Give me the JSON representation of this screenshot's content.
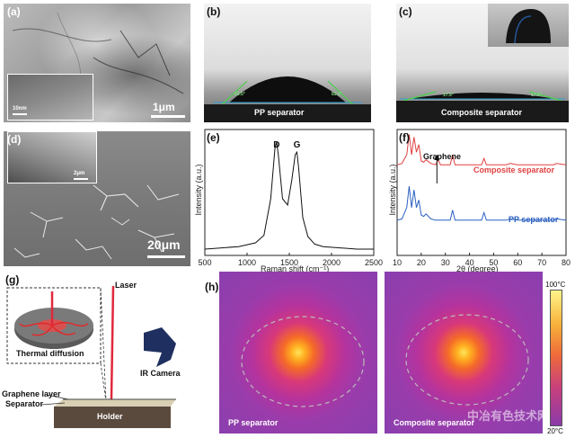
{
  "panels": {
    "a": {
      "label": "(a)",
      "scale_bar": "1μm",
      "inset_scale": "10nm"
    },
    "b": {
      "label": "(b)",
      "caption": "PP separator",
      "angle_left": "63.5°",
      "angle_right": "63.5°"
    },
    "c": {
      "label": "(c)",
      "caption": "Composite separator",
      "angle_left": "17.5°",
      "angle_right": "17.5°"
    },
    "d": {
      "label": "(d)",
      "scale_bar": "20μm",
      "inset_scale": "2μm"
    },
    "e": {
      "label": "(e)"
    },
    "f": {
      "label": "(f)"
    },
    "g": {
      "label": "(g)",
      "laser": "Laser",
      "thermal": "Thermal diffusion",
      "camera": "IR Camera",
      "graphene_layer": "Graphene layer",
      "separator": "Separator",
      "holder": "Holder"
    },
    "h": {
      "label": "(h)",
      "left_caption": "PP separator",
      "right_caption": "Composite separator",
      "scale_max": "100°C",
      "scale_min": "20°C"
    }
  },
  "watermark": "中冶有色技术网",
  "colors": {
    "composite": "#e04040",
    "pp": "#2a5fc0",
    "laser": "#e0283c",
    "camera": "#1f3060"
  },
  "chart_data": [
    {
      "type": "line",
      "panel": "e",
      "xlabel": "Raman shift (cm⁻¹)",
      "ylabel": "Intensity (a.u.)",
      "xlim": [
        500,
        2500
      ],
      "xticks": [
        500,
        1000,
        1500,
        2000,
        2500
      ],
      "annotations": [
        {
          "text": "D",
          "x": 1350
        },
        {
          "text": "G",
          "x": 1590
        }
      ],
      "series": [
        {
          "x": [
            500,
            700,
            900,
            1100,
            1200,
            1280,
            1330,
            1350,
            1370,
            1420,
            1480,
            1530,
            1570,
            1590,
            1610,
            1660,
            1720,
            1800,
            1900,
            2100,
            2300,
            2500
          ],
          "y": [
            0.05,
            0.06,
            0.07,
            0.1,
            0.16,
            0.45,
            0.85,
            0.9,
            0.8,
            0.45,
            0.4,
            0.6,
            0.8,
            0.82,
            0.7,
            0.3,
            0.15,
            0.09,
            0.07,
            0.06,
            0.05,
            0.05
          ]
        }
      ]
    },
    {
      "type": "line",
      "panel": "f",
      "xlabel": "2θ (degree)",
      "ylabel": "Intensity (a.u.)",
      "xlim": [
        10,
        80
      ],
      "xticks": [
        10,
        20,
        30,
        40,
        50,
        60,
        70,
        80
      ],
      "annotations": [
        {
          "text": "Graphene",
          "x": 26.5
        }
      ],
      "series": [
        {
          "name": "Composite separator",
          "x": [
            10,
            12,
            14,
            15,
            16,
            17,
            18,
            19,
            20,
            21,
            22,
            24,
            26,
            27,
            28,
            30,
            32,
            33,
            34,
            40,
            45,
            46,
            47,
            55,
            57,
            60,
            70,
            75,
            76,
            80
          ],
          "y": [
            0.72,
            0.73,
            0.8,
            0.96,
            0.8,
            0.94,
            0.82,
            0.88,
            0.75,
            0.74,
            0.76,
            0.73,
            0.72,
            0.76,
            0.72,
            0.72,
            0.72,
            0.8,
            0.72,
            0.72,
            0.72,
            0.77,
            0.72,
            0.72,
            0.73,
            0.72,
            0.72,
            0.72,
            0.73,
            0.72
          ]
        },
        {
          "name": "PP separator",
          "x": [
            10,
            12,
            14,
            15,
            16,
            17,
            18,
            19,
            20,
            21,
            22,
            24,
            26,
            28,
            30,
            32,
            33,
            34,
            40,
            45,
            46,
            47,
            55,
            57,
            60,
            70,
            75,
            76,
            80
          ],
          "y": [
            0.28,
            0.29,
            0.38,
            0.55,
            0.38,
            0.52,
            0.38,
            0.44,
            0.32,
            0.31,
            0.33,
            0.29,
            0.28,
            0.28,
            0.28,
            0.28,
            0.36,
            0.28,
            0.28,
            0.28,
            0.34,
            0.28,
            0.28,
            0.29,
            0.28,
            0.28,
            0.28,
            0.29,
            0.28
          ]
        }
      ]
    }
  ]
}
